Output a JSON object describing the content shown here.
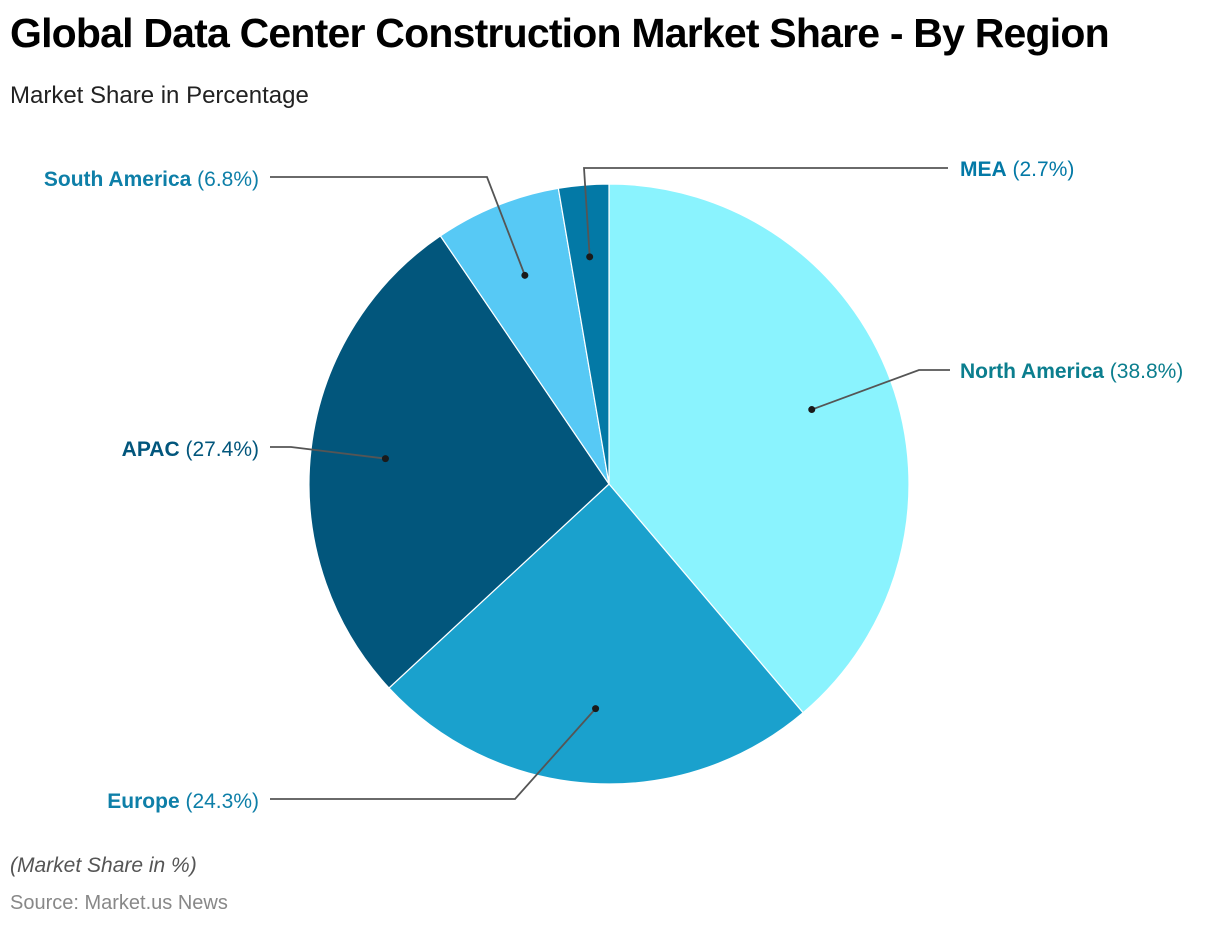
{
  "chart_data": {
    "type": "pie",
    "title": "Global Data Center Construction Market Share - By Region",
    "subtitle": "Market Share in Percentage",
    "note": "(Market Share in %)",
    "source": "Source: Market.us News",
    "slices": [
      {
        "name": "North America",
        "value": 38.8,
        "label_value": "(38.8%)",
        "color": "#8AF3FE",
        "label_color": "#0B7E8E"
      },
      {
        "name": "Europe",
        "value": 24.3,
        "label_value": "(24.3%)",
        "color": "#1AA1CD",
        "label_color": "#0E7FA8"
      },
      {
        "name": "APAC",
        "value": 27.4,
        "label_value": "(27.4%)",
        "color": "#02567C",
        "label_color": "#02567C"
      },
      {
        "name": "South America",
        "value": 6.8,
        "label_value": "(6.8%)",
        "color": "#57C9F5",
        "label_color": "#0E7FA8"
      },
      {
        "name": "MEA",
        "value": 2.7,
        "label_value": "(2.7%)",
        "color": "#0379A6",
        "label_color": "#0379A6"
      }
    ]
  }
}
